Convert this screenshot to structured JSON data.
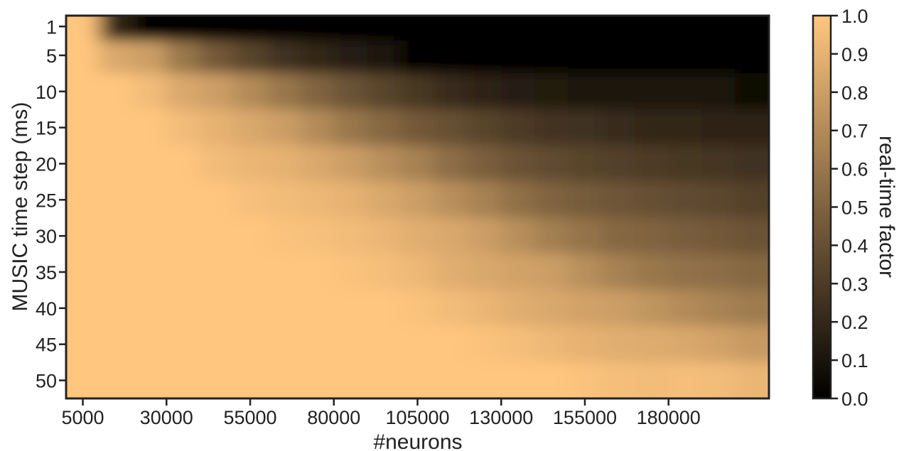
{
  "chart_data": {
    "type": "heatmap",
    "xlabel": "#neurons",
    "ylabel": "MUSIC time step (ms)",
    "colorbar_label": "real-time factor",
    "x_ticks": [
      "5000",
      "30000",
      "55000",
      "80000",
      "105000",
      "130000",
      "155000",
      "180000"
    ],
    "y_ticks": [
      "1",
      "5",
      "10",
      "15",
      "20",
      "25",
      "30",
      "35",
      "40",
      "45",
      "50"
    ],
    "colorbar_ticks": [
      "0.0",
      "0.1",
      "0.2",
      "0.3",
      "0.4",
      "0.5",
      "0.6",
      "0.7",
      "0.8",
      "0.9",
      "1.0"
    ],
    "colorbar_range": [
      0.0,
      1.0
    ],
    "colormap": "copper",
    "colormap_stops": [
      "#000000",
      "#ffc67f"
    ],
    "neurons": [
      5000,
      15000,
      25000,
      35000,
      45000,
      55000,
      65000,
      75000,
      85000,
      95000,
      105000,
      115000,
      125000,
      135000,
      145000,
      155000,
      165000,
      175000,
      185000,
      195000,
      205000
    ],
    "time_steps_ms": [
      1,
      5,
      10,
      15,
      20,
      25,
      30,
      35,
      40,
      45,
      50
    ],
    "values": [
      [
        1.0,
        0.2,
        0.0,
        0.0,
        0.0,
        0.0,
        0.0,
        0.0,
        0.0,
        0.0,
        0.0,
        0.0,
        0.0,
        0.0,
        0.0,
        0.0,
        0.0,
        0.0,
        0.0,
        0.0,
        0.0
      ],
      [
        1.0,
        0.85,
        0.8,
        0.6,
        0.45,
        0.35,
        0.25,
        0.2,
        0.15,
        0.1,
        0.0,
        0.0,
        0.0,
        0.0,
        0.0,
        0.0,
        0.0,
        0.0,
        0.0,
        0.0,
        0.0
      ],
      [
        1.0,
        1.0,
        0.95,
        0.85,
        0.8,
        0.7,
        0.6,
        0.5,
        0.42,
        0.35,
        0.28,
        0.22,
        0.18,
        0.15,
        0.13,
        0.12,
        0.1,
        0.1,
        0.1,
        0.1,
        0.05
      ],
      [
        1.0,
        1.0,
        1.0,
        0.95,
        0.9,
        0.85,
        0.8,
        0.7,
        0.6,
        0.52,
        0.45,
        0.4,
        0.35,
        0.3,
        0.26,
        0.25,
        0.22,
        0.2,
        0.2,
        0.18,
        0.18
      ],
      [
        1.0,
        1.0,
        1.0,
        1.0,
        0.95,
        0.92,
        0.9,
        0.85,
        0.8,
        0.72,
        0.65,
        0.55,
        0.48,
        0.42,
        0.38,
        0.35,
        0.32,
        0.3,
        0.28,
        0.27,
        0.25
      ],
      [
        1.0,
        1.0,
        1.0,
        1.0,
        1.0,
        0.97,
        0.95,
        0.93,
        0.9,
        0.85,
        0.8,
        0.72,
        0.65,
        0.56,
        0.5,
        0.46,
        0.43,
        0.4,
        0.38,
        0.36,
        0.33
      ],
      [
        1.0,
        1.0,
        1.0,
        1.0,
        1.0,
        1.0,
        0.98,
        0.97,
        0.95,
        0.92,
        0.88,
        0.85,
        0.8,
        0.72,
        0.64,
        0.58,
        0.52,
        0.5,
        0.47,
        0.45,
        0.42
      ],
      [
        1.0,
        1.0,
        1.0,
        1.0,
        1.0,
        1.0,
        1.0,
        1.0,
        0.98,
        0.96,
        0.93,
        0.88,
        0.85,
        0.82,
        0.8,
        0.72,
        0.65,
        0.6,
        0.57,
        0.55,
        0.52
      ],
      [
        1.0,
        1.0,
        1.0,
        1.0,
        1.0,
        1.0,
        1.0,
        1.0,
        1.0,
        1.0,
        0.98,
        0.95,
        0.92,
        0.88,
        0.85,
        0.82,
        0.8,
        0.75,
        0.7,
        0.66,
        0.62
      ],
      [
        1.0,
        1.0,
        1.0,
        1.0,
        1.0,
        1.0,
        1.0,
        1.0,
        1.0,
        1.0,
        1.0,
        1.0,
        0.98,
        0.96,
        0.93,
        0.9,
        0.88,
        0.87,
        0.85,
        0.82,
        0.78
      ],
      [
        1.0,
        1.0,
        1.0,
        1.0,
        1.0,
        1.0,
        1.0,
        1.0,
        1.0,
        1.0,
        1.0,
        1.0,
        1.0,
        1.0,
        1.0,
        0.98,
        0.96,
        0.95,
        0.96,
        0.95,
        0.92
      ]
    ]
  }
}
